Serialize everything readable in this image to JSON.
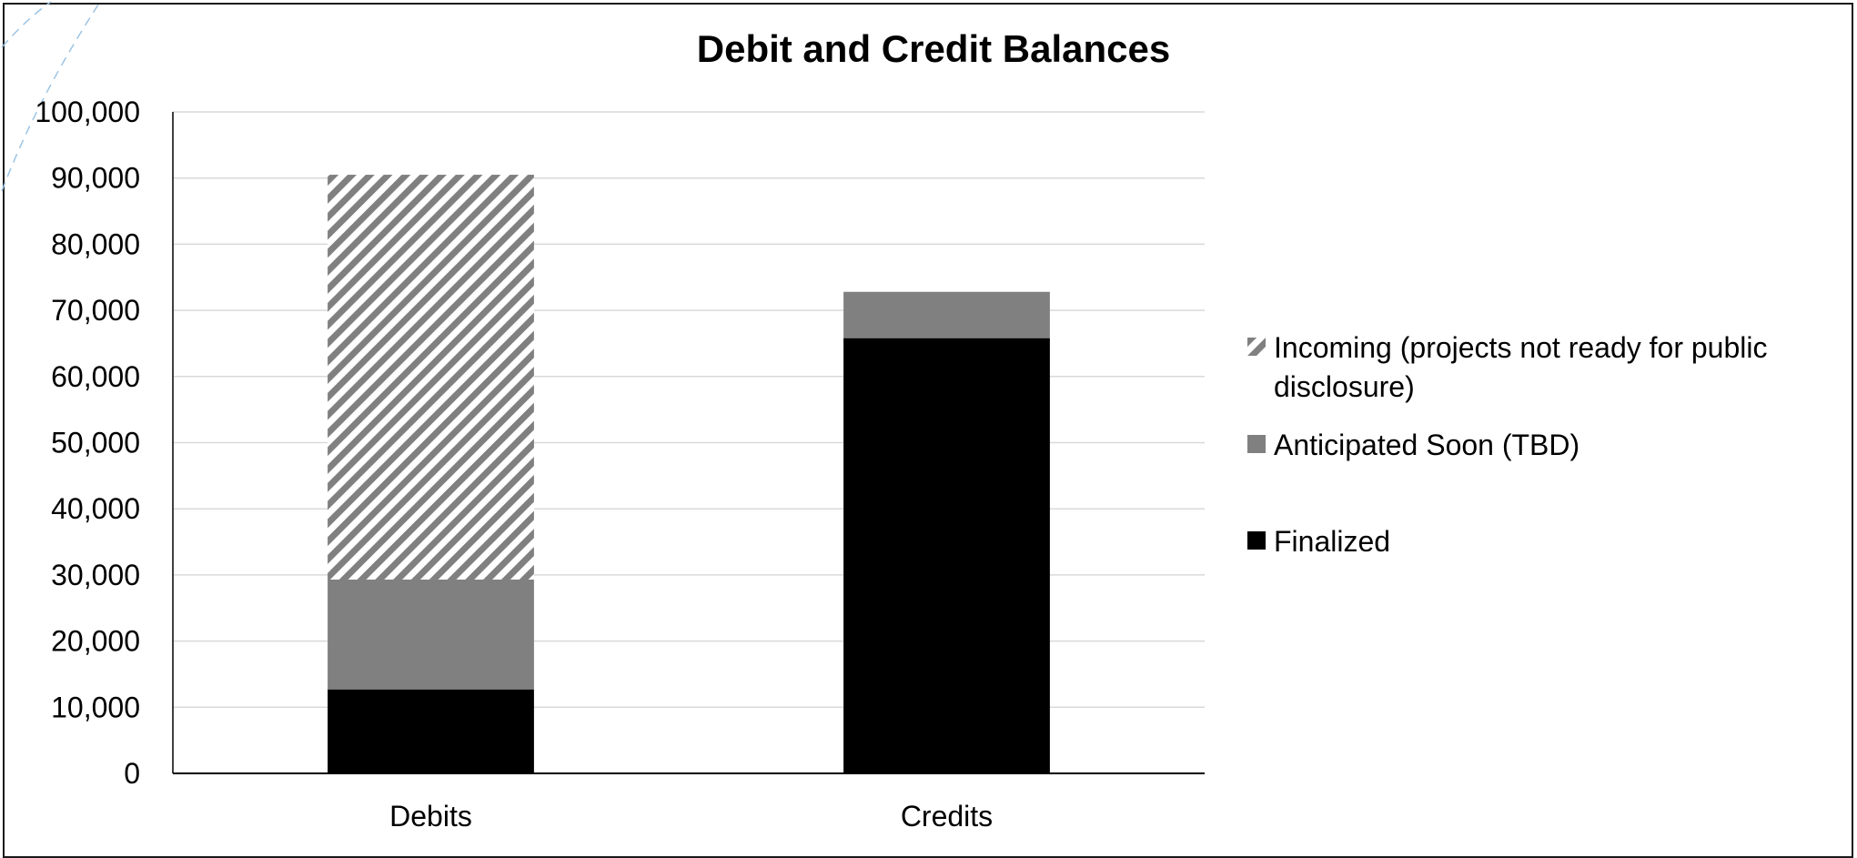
{
  "chart_data": {
    "type": "bar",
    "stacked": true,
    "title": "Debit and Credit Balances",
    "xlabel": "",
    "ylabel": "",
    "categories": [
      "Debits",
      "Credits"
    ],
    "ylim": [
      0,
      100000
    ],
    "yticks": [
      0,
      10000,
      20000,
      30000,
      40000,
      50000,
      60000,
      70000,
      80000,
      90000,
      100000
    ],
    "ytick_labels": [
      "0",
      "10,000",
      "20,000",
      "30,000",
      "40,000",
      "50,000",
      "60,000",
      "70,000",
      "80,000",
      "90,000",
      "100,000"
    ],
    "grid": true,
    "legend_position": "right",
    "series": [
      {
        "name": "Finalized",
        "values": [
          12700,
          65800
        ],
        "color": "#000000",
        "pattern": "solid"
      },
      {
        "name": "Anticipated Soon (TBD)",
        "values": [
          16600,
          7000
        ],
        "color": "#808080",
        "pattern": "solid"
      },
      {
        "name": "Incoming (projects not ready for public disclosure)",
        "values": [
          61200,
          0
        ],
        "color": "#808080",
        "pattern": "diagonal-hatch"
      }
    ],
    "legend_lines": [
      [
        "Incoming (projects not ready for public",
        "disclosure)"
      ],
      [
        "Anticipated Soon (TBD)"
      ],
      [
        "Finalized"
      ]
    ]
  }
}
